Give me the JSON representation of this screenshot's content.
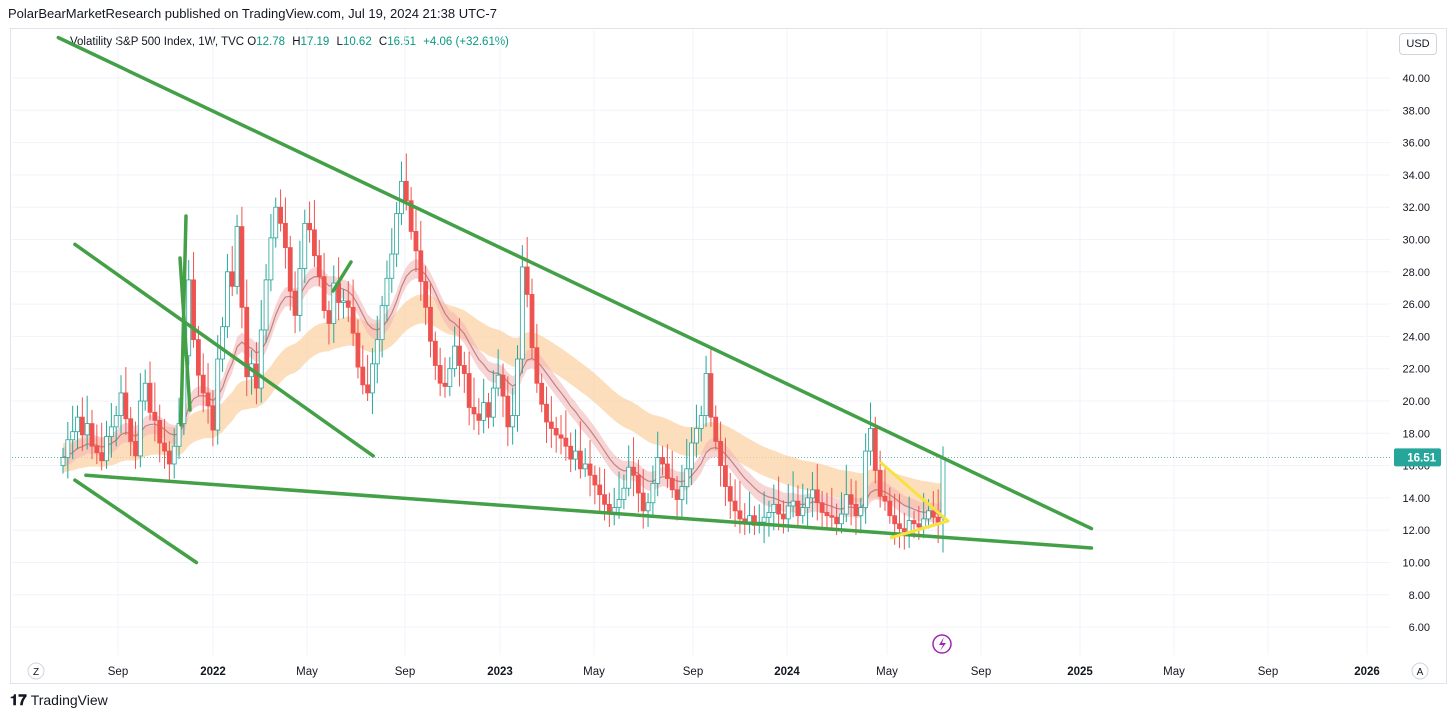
{
  "caption": "PolarBearMarketResearch published on TradingView.com, Jul 19, 2024 21:38 UTC-7",
  "legend": {
    "symbol": "Volatility S&P 500 Index, 1W, TVC",
    "o_label": "O",
    "o_value": "12.78",
    "h_label": "H",
    "h_value": "17.19",
    "l_label": "L",
    "l_value": "10.62",
    "c_label": "C",
    "c_value": "16.51",
    "change": "+4.06 (+32.61%)"
  },
  "currency_button": "USD",
  "last_price_label": "16.51",
  "z_button": "Z",
  "a_button": "A",
  "footer": {
    "logo_text": "TradingView",
    "logo_icon": "tradingview-logo-icon"
  },
  "colors": {
    "up": "#26a69a",
    "down": "#ef5350",
    "trendline": "#43a047",
    "highlight": "#f7e23e",
    "lastprice": "#26a69a",
    "grid": "#f0f3fa",
    "ema_band": "#fbd3a6",
    "blue_band": "#a6d4f3",
    "red_band": "#f3b2b2",
    "green_band": "#b5dbb0"
  },
  "chart_data": {
    "type": "candlestick",
    "timeframe": "1W",
    "yaxis": {
      "ticks": [
        "40.00",
        "38.00",
        "36.00",
        "34.00",
        "32.00",
        "30.00",
        "28.00",
        "26.00",
        "24.00",
        "22.00",
        "20.00",
        "18.00",
        "16.00",
        "14.00",
        "12.00",
        "10.00",
        "8.00",
        "6.00"
      ],
      "ylim": [
        5,
        41
      ]
    },
    "xaxis": {
      "ticks": [
        "Sep",
        "2022",
        "May",
        "Sep",
        "2023",
        "May",
        "Sep",
        "2024",
        "May",
        "Sep",
        "2025",
        "May",
        "Sep",
        "2026"
      ],
      "bold_ticks": [
        "2022",
        "2023",
        "2024",
        "2025",
        "2026"
      ]
    },
    "series_close": [
      16.5,
      17.6,
      18.1,
      19.0,
      17.9,
      18.6,
      17.2,
      16.8,
      16.3,
      17.8,
      18.4,
      19.1,
      20.5,
      18.9,
      17.5,
      16.6,
      20.0,
      21.1,
      19.3,
      18.8,
      17.4,
      16.9,
      16.1,
      17.2,
      18.6,
      22.8,
      27.5,
      23.8,
      21.6,
      20.5,
      19.7,
      18.2,
      22.6,
      24.6,
      28.0,
      27.1,
      30.8,
      25.8,
      21.5,
      22.3,
      20.8,
      24.4,
      27.5,
      30.1,
      32.0,
      31.0,
      29.5,
      26.8,
      25.3,
      28.2,
      31.0,
      30.6,
      29.0,
      27.7,
      25.6,
      24.8,
      27.3,
      26.1,
      26.2,
      25.8,
      24.2,
      22.1,
      21.0,
      20.5,
      22.3,
      23.8,
      25.9,
      27.6,
      29.1,
      31.6,
      33.6,
      32.4,
      30.5,
      29.3,
      27.4,
      25.8,
      23.7,
      22.2,
      21.1,
      20.9,
      22.0,
      23.4,
      22.2,
      21.7,
      19.6,
      19.2,
      18.8,
      19.9,
      19.0,
      20.8,
      21.6,
      20.3,
      18.4,
      19.1,
      22.6,
      28.3,
      26.6,
      23.3,
      21.1,
      19.8,
      18.7,
      18.3,
      17.9,
      17.7,
      17.2,
      16.4,
      16.9,
      15.8,
      16.1,
      15.4,
      14.8,
      14.2,
      13.6,
      13.1,
      13.4,
      13.9,
      14.6,
      15.9,
      15.4,
      14.3,
      13.2,
      13.7,
      14.9,
      16.5,
      16.1,
      15.2,
      14.5,
      13.9,
      14.7,
      15.8,
      17.4,
      18.3,
      19.1,
      21.7,
      19.0,
      17.5,
      16.0,
      14.7,
      13.8,
      13.2,
      12.7,
      12.5,
      12.9,
      12.3,
      12.5,
      12.8,
      13.1,
      13.6,
      13.0,
      12.7,
      13.5,
      13.8,
      12.9,
      13.4,
      14.0,
      14.5,
      13.7,
      13.1,
      12.9,
      12.8,
      12.4,
      13.0,
      14.2,
      13.6,
      12.9,
      13.4,
      16.9,
      18.3,
      15.7,
      14.1,
      13.8,
      12.9,
      12.4,
      12.1,
      11.9,
      12.6,
      12.4,
      12.2,
      12.7,
      13.2,
      12.8,
      12.5,
      16.51
    ],
    "last_close": 16.51,
    "last_bar": {
      "open": 12.78,
      "high": 17.19,
      "low": 10.62,
      "close": 16.51
    },
    "trendlines": [
      {
        "name": "upper-resistance",
        "from": [
          "2021-W25",
          42.5
        ],
        "to": [
          "2025-W04",
          12.1
        ]
      },
      {
        "name": "lower-support",
        "from": [
          "2021-W30",
          15.4
        ],
        "to": [
          "2025-W04",
          10.9
        ]
      },
      {
        "name": "early-channel-upper",
        "from": [
          "2021-W28",
          29.7
        ],
        "to": [
          "2022-W30",
          16.6
        ]
      },
      {
        "name": "early-channel-lower",
        "from": [
          "2021-W28",
          15.1
        ],
        "to": [
          "2021-W50",
          10.0
        ]
      }
    ]
  }
}
